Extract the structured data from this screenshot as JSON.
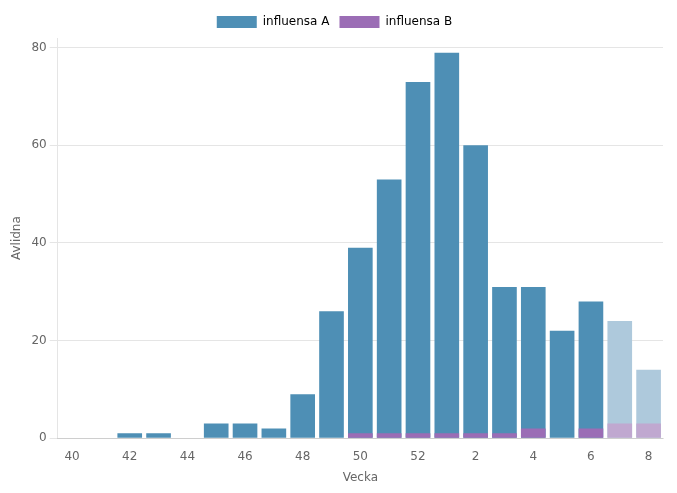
{
  "chart_data": {
    "type": "bar",
    "xlabel": "Vecka",
    "ylabel": "Avlidna",
    "categories": [
      "40",
      null,
      "42",
      null,
      "44",
      null,
      "46",
      null,
      "48",
      null,
      "50",
      null,
      "52",
      null,
      "2",
      null,
      "4",
      null,
      "6",
      null,
      "8"
    ],
    "series": [
      {
        "name": "influensa A",
        "color": "#4e8fb5",
        "colors": [
          "#4e8fb5",
          "#4e8fb5",
          "#4e8fb5",
          "#4e8fb5",
          "#4e8fb5",
          "#4e8fb5",
          "#4e8fb5",
          "#4e8fb5",
          "#4e8fb5",
          "#4e8fb5",
          "#4e8fb5",
          "#4e8fb5",
          "#4e8fb5",
          "#4e8fb5",
          "#4e8fb5",
          "#4e8fb5",
          "#4e8fb5",
          "#4e8fb5",
          "#4e8fb5",
          "#aec9dc",
          "#aec9dc"
        ],
        "values": [
          0,
          0,
          1,
          1,
          0,
          3,
          3,
          2,
          9,
          26,
          39,
          53,
          73,
          79,
          60,
          31,
          31,
          22,
          28,
          24,
          14
        ]
      },
      {
        "name": "influensa B",
        "color": "#9b6db5",
        "colors": [
          "#9b6db5",
          "#9b6db5",
          "#9b6db5",
          "#9b6db5",
          "#9b6db5",
          "#9b6db5",
          "#9b6db5",
          "#9b6db5",
          "#9b6db5",
          "#9b6db5",
          "#9b6db5",
          "#9b6db5",
          "#9b6db5",
          "#9b6db5",
          "#9b6db5",
          "#9b6db5",
          "#9b6db5",
          "#9b6db5",
          "#9b6db5",
          "#c0a8d0",
          "#c0a8d0"
        ],
        "values": [
          0,
          0,
          0,
          0,
          0,
          0,
          0,
          0,
          0,
          0,
          1,
          1,
          1,
          1,
          1,
          1,
          2,
          0,
          2,
          3,
          3
        ]
      }
    ],
    "ylim": [
      0,
      82
    ],
    "yticks": [
      0,
      20,
      40,
      60,
      80
    ],
    "grid": true,
    "legend": "top"
  }
}
